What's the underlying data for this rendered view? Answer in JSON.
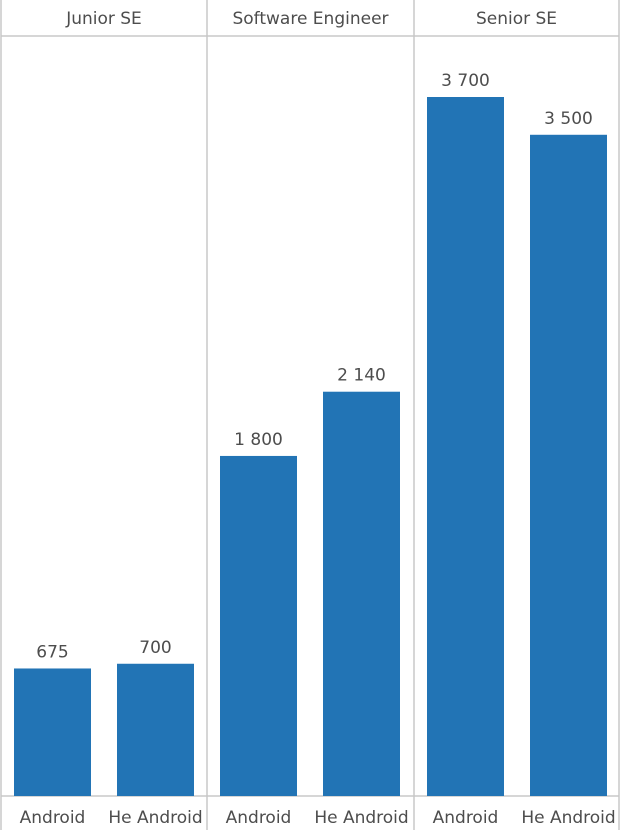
{
  "chart_data": {
    "type": "bar",
    "title": "",
    "xlabel": "",
    "ylabel": "",
    "bar_color": "#2274b5",
    "ylim": [
      0,
      3700
    ],
    "grid": false,
    "panels": [
      {
        "name": "Junior SE",
        "categories": [
          "Android",
          "He Android"
        ],
        "values": [
          675,
          700
        ],
        "value_labels": [
          "675",
          "700"
        ]
      },
      {
        "name": "Software Engineer",
        "categories": [
          "Android",
          "He Android"
        ],
        "values": [
          1800,
          2140
        ],
        "value_labels": [
          "1 800",
          "2 140"
        ]
      },
      {
        "name": "Senior SE",
        "categories": [
          "Android",
          "He Android"
        ],
        "values": [
          3700,
          3500
        ],
        "value_labels": [
          "3 700",
          "3 500"
        ]
      }
    ]
  }
}
